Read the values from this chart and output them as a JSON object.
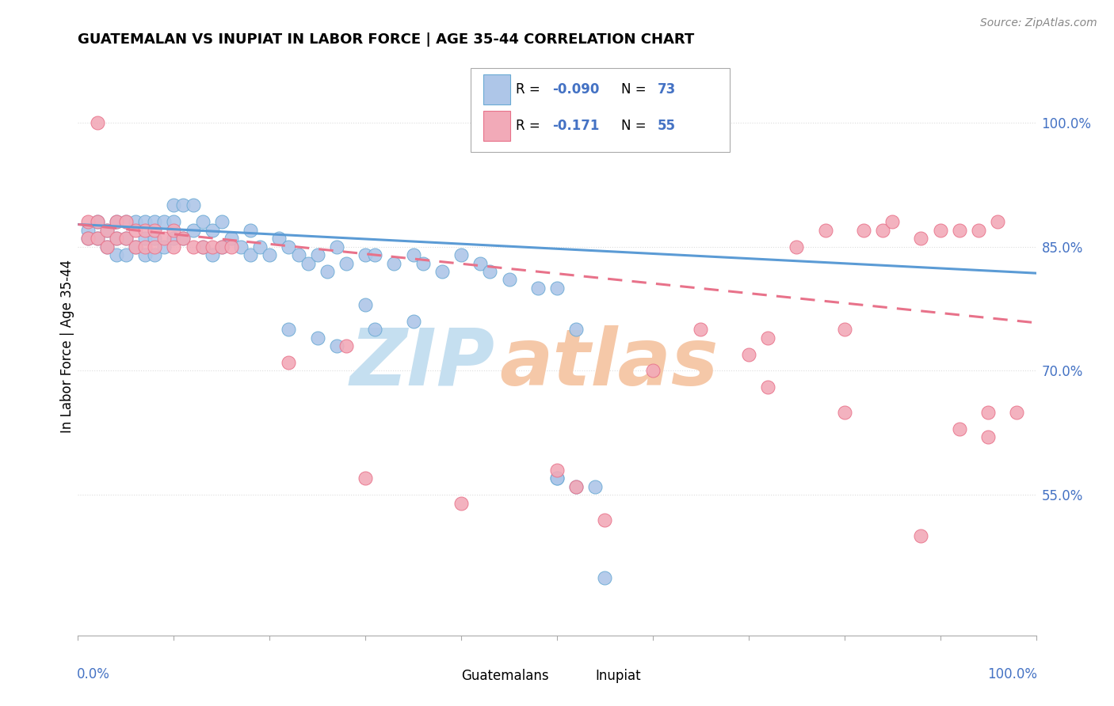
{
  "title": "GUATEMALAN VS INUPIAT IN LABOR FORCE | AGE 35-44 CORRELATION CHART",
  "source": "Source: ZipAtlas.com",
  "ylabel": "In Labor Force | Age 35-44",
  "ytick_vals": [
    0.55,
    0.7,
    0.85,
    1.0
  ],
  "ytick_labels": [
    "55.0%",
    "70.0%",
    "85.0%",
    "100.0%"
  ],
  "legend_blue_label": "Guatemalans",
  "legend_pink_label": "Inupiat",
  "r_blue": "-0.090",
  "n_blue": "73",
  "r_pink": "-0.171",
  "n_pink": "55",
  "blue_fill": "#aec6e8",
  "pink_fill": "#f2aab8",
  "blue_edge": "#6aaad4",
  "pink_edge": "#e8728a",
  "line_blue_color": "#5b9bd5",
  "line_pink_color": "#e8728a",
  "text_blue": "#4472c4",
  "watermark_zip_color": "#c5dff0",
  "watermark_atlas_color": "#f5c8a8",
  "background": "#ffffff",
  "grid_color": "#dddddd",
  "xlim": [
    0.0,
    1.0
  ],
  "ylim": [
    0.38,
    1.08
  ],
  "blue_x": [
    0.01,
    0.01,
    0.02,
    0.02,
    0.03,
    0.03,
    0.04,
    0.04,
    0.04,
    0.05,
    0.05,
    0.05,
    0.06,
    0.06,
    0.07,
    0.07,
    0.07,
    0.08,
    0.08,
    0.08,
    0.09,
    0.09,
    0.1,
    0.1,
    0.1,
    0.11,
    0.11,
    0.12,
    0.12,
    0.13,
    0.13,
    0.14,
    0.14,
    0.15,
    0.15,
    0.16,
    0.17,
    0.18,
    0.18,
    0.19,
    0.2,
    0.21,
    0.22,
    0.23,
    0.24,
    0.25,
    0.26,
    0.27,
    0.28,
    0.3,
    0.31,
    0.33,
    0.35,
    0.36,
    0.38,
    0.4,
    0.42,
    0.43,
    0.45,
    0.48,
    0.5,
    0.52,
    0.54,
    0.3,
    0.31,
    0.55,
    0.22,
    0.25,
    0.27,
    0.5,
    0.52,
    0.5,
    0.35
  ],
  "blue_y": [
    0.87,
    0.86,
    0.88,
    0.86,
    0.87,
    0.85,
    0.88,
    0.86,
    0.84,
    0.88,
    0.86,
    0.84,
    0.88,
    0.85,
    0.88,
    0.86,
    0.84,
    0.88,
    0.86,
    0.84,
    0.88,
    0.85,
    0.9,
    0.88,
    0.86,
    0.9,
    0.86,
    0.9,
    0.87,
    0.88,
    0.85,
    0.87,
    0.84,
    0.88,
    0.85,
    0.86,
    0.85,
    0.87,
    0.84,
    0.85,
    0.84,
    0.86,
    0.85,
    0.84,
    0.83,
    0.84,
    0.82,
    0.85,
    0.83,
    0.84,
    0.84,
    0.83,
    0.84,
    0.83,
    0.82,
    0.84,
    0.83,
    0.82,
    0.81,
    0.8,
    0.57,
    0.75,
    0.56,
    0.78,
    0.75,
    0.45,
    0.75,
    0.74,
    0.73,
    0.8,
    0.56,
    0.57,
    0.76
  ],
  "pink_x": [
    0.01,
    0.01,
    0.02,
    0.02,
    0.03,
    0.03,
    0.04,
    0.04,
    0.05,
    0.05,
    0.06,
    0.06,
    0.07,
    0.07,
    0.08,
    0.08,
    0.09,
    0.1,
    0.1,
    0.11,
    0.12,
    0.13,
    0.14,
    0.15,
    0.16,
    0.65,
    0.7,
    0.72,
    0.75,
    0.78,
    0.8,
    0.82,
    0.84,
    0.85,
    0.88,
    0.9,
    0.92,
    0.94,
    0.95,
    0.96,
    0.98,
    0.22,
    0.5,
    0.6,
    0.28,
    0.4,
    0.52,
    0.55,
    0.3,
    0.72,
    0.8,
    0.88,
    0.92,
    0.95,
    0.02
  ],
  "pink_y": [
    0.88,
    0.86,
    0.88,
    0.86,
    0.87,
    0.85,
    0.88,
    0.86,
    0.88,
    0.86,
    0.87,
    0.85,
    0.87,
    0.85,
    0.87,
    0.85,
    0.86,
    0.87,
    0.85,
    0.86,
    0.85,
    0.85,
    0.85,
    0.85,
    0.85,
    0.75,
    0.72,
    0.74,
    0.85,
    0.87,
    0.75,
    0.87,
    0.87,
    0.88,
    0.86,
    0.87,
    0.87,
    0.87,
    0.65,
    0.88,
    0.65,
    0.71,
    0.58,
    0.7,
    0.73,
    0.54,
    0.56,
    0.52,
    0.57,
    0.68,
    0.65,
    0.5,
    0.63,
    0.62,
    1.0
  ]
}
